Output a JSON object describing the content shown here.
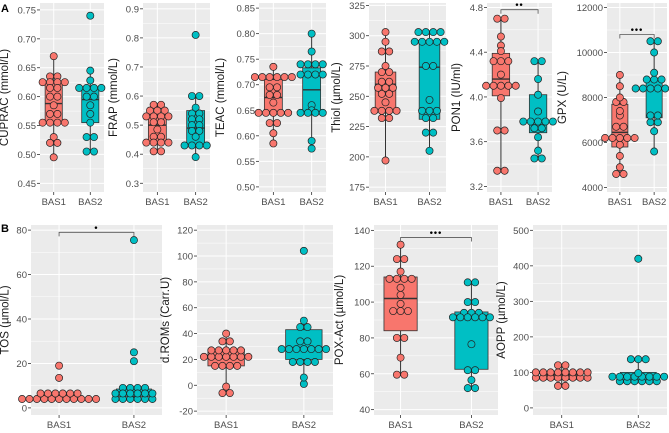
{
  "colors": {
    "BAS1": "#F8766D",
    "BAS2": "#00BFC4",
    "panel_bg": "#EBEBEB",
    "grid": "#FFFFFF"
  },
  "panel_tags": [
    "A",
    "B"
  ],
  "chart_data": [
    {
      "type": "box",
      "id": "cuprac",
      "ylabel": "CUPRAC (mmol/L)",
      "ylim": [
        0.435,
        0.762
      ],
      "yticks": [
        "0.45",
        "0.50",
        "0.55",
        "0.60",
        "0.65",
        "0.70",
        "0.75"
      ],
      "categories": [
        "BAS1",
        "BAS2"
      ],
      "groups": [
        {
          "name": "BAS1",
          "q1": 0.555,
          "median": 0.588,
          "q3": 0.627,
          "whisker_low": 0.495,
          "whisker_high": 0.67,
          "points": [
            0.67,
            0.635,
            0.635,
            0.625,
            0.625,
            0.625,
            0.625,
            0.615,
            0.615,
            0.6,
            0.6,
            0.585,
            0.57,
            0.57,
            0.555,
            0.555,
            0.555,
            0.555,
            0.53,
            0.52,
            0.52,
            0.495
          ]
        },
        {
          "name": "BAS2",
          "q1": 0.555,
          "median": 0.595,
          "q3": 0.615,
          "whisker_low": 0.505,
          "whisker_high": 0.645,
          "points": [
            0.74,
            0.645,
            0.628,
            0.615,
            0.615,
            0.615,
            0.615,
            0.6,
            0.6,
            0.585,
            0.57,
            0.555,
            0.53,
            0.53,
            0.505,
            0.505
          ]
        }
      ]
    },
    {
      "type": "box",
      "id": "frap",
      "ylabel": "FRAP (mmol/L)",
      "ylim": [
        0.27,
        0.92
      ],
      "yticks": [
        "0.3",
        "0.4",
        "0.5",
        "0.6",
        "0.7",
        "0.8",
        "0.9"
      ],
      "categories": [
        "BAS1",
        "BAS2"
      ],
      "groups": [
        {
          "name": "BAS1",
          "q1": 0.44,
          "median": 0.5,
          "q3": 0.54,
          "whisker_low": 0.41,
          "whisker_high": 0.57,
          "points": [
            0.57,
            0.57,
            0.55,
            0.55,
            0.55,
            0.53,
            0.53,
            0.53,
            0.53,
            0.51,
            0.51,
            0.485,
            0.46,
            0.46,
            0.44,
            0.44,
            0.44,
            0.44,
            0.41,
            0.41
          ]
        },
        {
          "name": "BAS2",
          "q1": 0.43,
          "median": 0.49,
          "q3": 0.55,
          "whisker_low": 0.39,
          "whisker_high": 0.6,
          "points": [
            0.81,
            0.6,
            0.6,
            0.56,
            0.54,
            0.54,
            0.52,
            0.52,
            0.5,
            0.5,
            0.48,
            0.48,
            0.46,
            0.43,
            0.43,
            0.43,
            0.43,
            0.39
          ]
        }
      ]
    },
    {
      "type": "box",
      "id": "teac",
      "ylabel": "TEAC (mmol/L)",
      "ylim": [
        0.49,
        0.86
      ],
      "yticks": [
        "0.50",
        "0.55",
        "0.60",
        "0.65",
        "0.70",
        "0.75",
        "0.80",
        "0.85"
      ],
      "categories": [
        "BAS1",
        "BAS2"
      ],
      "groups": [
        {
          "name": "BAS1",
          "q1": 0.645,
          "median": 0.675,
          "q3": 0.71,
          "whisker_low": 0.585,
          "whisker_high": 0.735,
          "points": [
            0.735,
            0.715,
            0.715,
            0.715,
            0.715,
            0.715,
            0.715,
            0.695,
            0.695,
            0.68,
            0.68,
            0.665,
            0.645,
            0.645,
            0.645,
            0.645,
            0.645,
            0.625,
            0.625,
            0.605,
            0.585
          ]
        },
        {
          "name": "BAS2",
          "q1": 0.647,
          "median": 0.69,
          "q3": 0.733,
          "whisker_low": 0.575,
          "whisker_high": 0.8,
          "points": [
            0.8,
            0.765,
            0.74,
            0.74,
            0.74,
            0.74,
            0.72,
            0.72,
            0.72,
            0.72,
            0.66,
            0.65,
            0.645,
            0.645,
            0.645,
            0.645,
            0.59,
            0.575
          ]
        }
      ]
    },
    {
      "type": "box",
      "id": "thiol",
      "ylabel": "Thiol (µmol/L)",
      "ylim": [
        171,
        327
      ],
      "yticks": [
        "175",
        "200",
        "225",
        "250",
        "275",
        "300",
        "325"
      ],
      "categories": [
        "BAS1",
        "BAS2"
      ],
      "groups": [
        {
          "name": "BAS1",
          "q1": 238,
          "median": 260,
          "q3": 270,
          "whisker_low": 197,
          "whisker_high": 303,
          "points": [
            303,
            295,
            287,
            287,
            275,
            270,
            270,
            262,
            262,
            257,
            257,
            257,
            252,
            252,
            245,
            238,
            238,
            238,
            238,
            232,
            232,
            197
          ]
        },
        {
          "name": "BAS2",
          "q1": 231,
          "median": 274,
          "q3": 295,
          "whisker_low": 205,
          "whisker_high": 303,
          "points": [
            303,
            303,
            303,
            303,
            295,
            295,
            295,
            295,
            295,
            275,
            275,
            247,
            238,
            238,
            238,
            232,
            232,
            220,
            220,
            205
          ]
        }
      ]
    },
    {
      "type": "box",
      "id": "pon1",
      "ylabel": "PON1 (IU/ml)",
      "ylim": [
        3.15,
        4.84
      ],
      "yticks": [
        "3.2",
        "3.6",
        "4.0",
        "4.4",
        "4.8"
      ],
      "categories": [
        "BAS1",
        "BAS2"
      ],
      "significance": {
        "label": "••",
        "y": 4.78
      },
      "groups": [
        {
          "name": "BAS1",
          "q1": 4.01,
          "median": 4.16,
          "q3": 4.39,
          "whisker_low": 3.34,
          "whisker_high": 4.7,
          "points": [
            4.7,
            4.7,
            4.54,
            4.46,
            4.41,
            4.32,
            4.32,
            4.32,
            4.2,
            4.1,
            4.1,
            4.1,
            4.1,
            4.1,
            3.99,
            3.7,
            3.7,
            3.34,
            3.34
          ]
        },
        {
          "name": "BAS2",
          "q1": 3.68,
          "median": 3.78,
          "q3": 4.02,
          "whisker_low": 3.45,
          "whisker_high": 4.32,
          "points": [
            4.32,
            4.32,
            4.16,
            4.02,
            3.87,
            3.78,
            3.78,
            3.78,
            3.78,
            3.78,
            3.72,
            3.72,
            3.64,
            3.52,
            3.45,
            3.45
          ]
        }
      ]
    },
    {
      "type": "box",
      "id": "gpx",
      "ylabel": "GPX (U/L)",
      "ylim": [
        3800,
        12200
      ],
      "yticks": [
        "4000",
        "6000",
        "8000",
        "10000",
        "12000"
      ],
      "categories": [
        "BAS1",
        "BAS2"
      ],
      "significance": {
        "label": "•••",
        "y": 10800
      },
      "groups": [
        {
          "name": "BAS1",
          "q1": 5800,
          "median": 6450,
          "q3": 7700,
          "whisker_low": 4600,
          "whisker_high": 9000,
          "points": [
            9000,
            8500,
            8000,
            7800,
            7800,
            7400,
            7200,
            6700,
            6700,
            6200,
            6200,
            6200,
            6200,
            6200,
            5900,
            5400,
            4900,
            4600,
            4600
          ]
        },
        {
          "name": "BAS2",
          "q1": 7100,
          "median": 8400,
          "q3": 8850,
          "whisker_low": 5600,
          "whisker_high": 10500,
          "points": [
            10500,
            10500,
            10000,
            9100,
            8800,
            8800,
            8800,
            8400,
            8400,
            8400,
            8400,
            8400,
            8400,
            7200,
            7200,
            6900,
            6900,
            6500,
            5600
          ]
        }
      ]
    },
    {
      "type": "box",
      "id": "tos",
      "ylabel": "TOS (µmol/L)",
      "ylim": [
        -3.2,
        82.3
      ],
      "yticks": [
        "0",
        "20",
        "40",
        "60",
        "80"
      ],
      "categories": [
        "BAS1",
        "BAS2"
      ],
      "significance": {
        "label": "•",
        "y": 79
      },
      "groups": [
        {
          "name": "BAS1",
          "q1": 4,
          "median": 5.5,
          "q3": 5.5,
          "whisker_low": 4,
          "whisker_high": 6.5,
          "points": [
            19,
            13.5,
            6.5,
            6.5,
            6.5,
            6.5,
            6.5,
            6.5,
            4,
            4,
            4,
            4,
            4,
            4,
            4,
            4,
            4,
            4,
            4
          ]
        },
        {
          "name": "BAS2",
          "q1": 5.2,
          "median": 7,
          "q3": 8.5,
          "whisker_low": 4,
          "whisker_high": 9,
          "points": [
            75.5,
            25,
            21,
            9,
            9,
            9,
            9,
            6.5,
            6.5,
            6.5,
            6.5,
            6.5,
            6.5,
            4,
            4,
            4,
            4,
            4,
            4
          ]
        }
      ]
    },
    {
      "type": "box",
      "id": "droms",
      "ylabel": "d.ROMs (Carr.U)",
      "ylim": [
        -23,
        124
      ],
      "yticks": [
        "-20",
        "0",
        "20",
        "40",
        "60",
        "80",
        "100",
        "120"
      ],
      "categories": [
        "BAS1",
        "BAS2"
      ],
      "groups": [
        {
          "name": "BAS1",
          "q1": 15,
          "median": 21,
          "q3": 28,
          "whisker_low": -6,
          "whisker_high": 40,
          "points": [
            40,
            34,
            34,
            27,
            27,
            27,
            27,
            27,
            22,
            22,
            22,
            22,
            22,
            22,
            22,
            15,
            15,
            15,
            15,
            -1,
            -6,
            -6
          ]
        },
        {
          "name": "BAS2",
          "q1": 20,
          "median": 29,
          "q3": 43,
          "whisker_low": 1,
          "whisker_high": 50,
          "points": [
            104,
            50,
            45,
            45,
            34,
            34,
            28,
            28,
            28,
            28,
            28,
            28,
            28,
            18,
            18,
            18,
            18,
            6,
            1
          ]
        }
      ]
    },
    {
      "type": "box",
      "id": "pox",
      "ylabel": "POX-Act (µmol/L)",
      "ylim": [
        37,
        143
      ],
      "yticks": [
        "40",
        "60",
        "80",
        "100",
        "120",
        "140"
      ],
      "categories": [
        "BAS1",
        "BAS2"
      ],
      "significance": {
        "label": "•••",
        "y": 136
      },
      "groups": [
        {
          "name": "BAS1",
          "q1": 84,
          "median": 102,
          "q3": 114,
          "whisker_low": 59.5,
          "whisker_high": 132,
          "points": [
            132,
            124,
            124,
            117,
            113,
            113,
            113,
            113,
            108,
            104,
            99,
            95,
            95,
            95,
            80,
            80,
            69,
            59.5,
            59.5
          ]
        },
        {
          "name": "BAS2",
          "q1": 62.5,
          "median": 92.5,
          "q3": 94.5,
          "whisker_low": 52,
          "whisker_high": 111,
          "points": [
            111,
            111,
            100,
            100,
            94,
            94,
            94,
            91.5,
            91.5,
            91.5,
            91.5,
            91.5,
            91.5,
            76.5,
            62,
            62,
            56.5,
            52,
            52
          ]
        }
      ]
    },
    {
      "type": "box",
      "id": "aopp",
      "ylabel": "AOPP (µmol/L)",
      "ylim": [
        -20,
        515
      ],
      "yticks": [
        "0",
        "100",
        "200",
        "300",
        "400",
        "500"
      ],
      "categories": [
        "BAS1",
        "BAS2"
      ],
      "groups": [
        {
          "name": "BAS1",
          "q1": 80,
          "median": 93,
          "q3": 100,
          "whisker_low": 62,
          "whisker_high": 120,
          "points": [
            120,
            120,
            100,
            100,
            100,
            100,
            100,
            100,
            100,
            100,
            85,
            85,
            85,
            85,
            85,
            85,
            85,
            85,
            62,
            62
          ]
        },
        {
          "name": "BAS2",
          "q1": 78,
          "median": 88,
          "q3": 100,
          "whisker_low": 72,
          "whisker_high": 137,
          "points": [
            420,
            137,
            137,
            137,
            98,
            88,
            88,
            88,
            88,
            88,
            88,
            88,
            88,
            75,
            75,
            75,
            75,
            75,
            75
          ]
        }
      ]
    }
  ]
}
